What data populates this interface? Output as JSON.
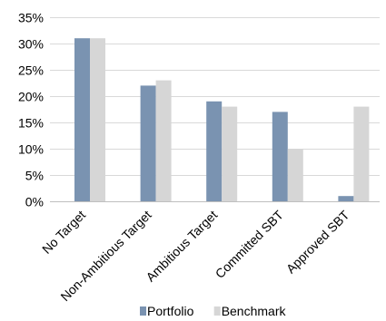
{
  "chart_data": {
    "type": "bar",
    "categories": [
      "No Target",
      "Non-Ambitious Target",
      "Ambitious Target",
      "Committed SBT",
      "Approved SBT"
    ],
    "series": [
      {
        "name": "Portfolio",
        "values": [
          31,
          22,
          19,
          17,
          1
        ],
        "color": "#7a93b1"
      },
      {
        "name": "Benchmark",
        "values": [
          31,
          23,
          18,
          10,
          18
        ],
        "color": "#d6d6d6"
      }
    ],
    "y_tick_labels": [
      "0%",
      "5%",
      "10%",
      "15%",
      "20%",
      "25%",
      "30%",
      "35%"
    ],
    "y_ticks": [
      0,
      5,
      10,
      15,
      20,
      25,
      30,
      35
    ],
    "ylim": [
      0,
      35
    ],
    "title": "",
    "xlabel": "",
    "ylabel": "",
    "grid": true,
    "legend_position": "bottom"
  }
}
